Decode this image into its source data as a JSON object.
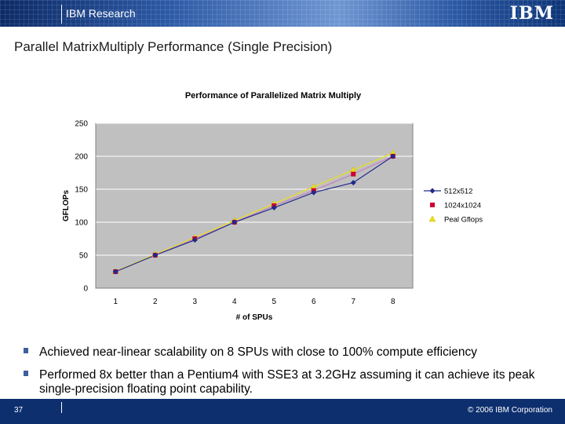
{
  "header": {
    "title": "IBM Research",
    "logo_text": "IBM"
  },
  "slide": {
    "title": "Parallel MatrixMultiply Performance (Single Precision)"
  },
  "bullets": [
    "Achieved near-linear scalability on 8 SPUs with close to 100% compute efficiency",
    "Performed 8x better than a Pentium4 with SSE3 at 3.2GHz assuming it can achieve its peak single-precision floating point capability."
  ],
  "footer": {
    "page_number": "37",
    "copyright": "© 2006 IBM Corporation"
  },
  "colors": {
    "header_dark": "#0c2a66",
    "plot_bg": "#c0c0c0",
    "series_512": "#1f2a8c",
    "series_1024": "#cc0033",
    "series_peak": "#e8e020",
    "series_1024_line": "#c080c0"
  },
  "chart_data": {
    "type": "line",
    "title": "Performance of Parallelized Matrix Multiply",
    "xlabel": "# of SPUs",
    "ylabel": "GFLOPs",
    "x": [
      1,
      2,
      3,
      4,
      5,
      6,
      7,
      8
    ],
    "ylim": [
      0,
      250
    ],
    "yticks": [
      0,
      50,
      100,
      150,
      200,
      250
    ],
    "grid": "horizontal",
    "legend_position": "right",
    "series": [
      {
        "name": "512x512",
        "values": [
          25,
          50,
          73,
          100,
          122,
          145,
          160,
          200
        ],
        "color": "#1f2a8c",
        "marker": "diamond"
      },
      {
        "name": "1024x1024",
        "values": [
          25,
          50,
          75,
          100,
          125,
          148,
          173,
          200
        ],
        "color": "#cc0033",
        "marker": "square"
      },
      {
        "name": "Peal Gflops",
        "values": [
          25.6,
          51.2,
          76.8,
          102.4,
          128,
          153.6,
          179.2,
          204.8
        ],
        "color": "#e8e020",
        "marker": "triangle"
      }
    ]
  }
}
